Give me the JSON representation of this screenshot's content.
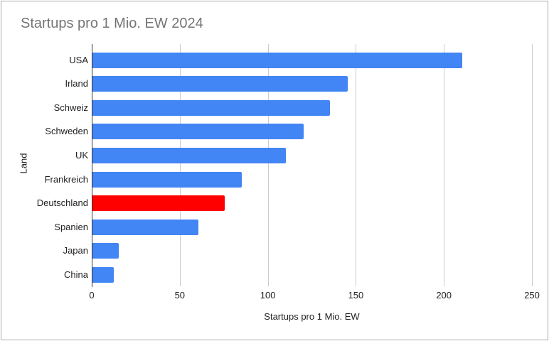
{
  "chart_data": {
    "type": "bar",
    "orientation": "horizontal",
    "title": "Startups pro 1 Mio. EW 2024",
    "xlabel": "Startups pro 1 Mio. EW",
    "ylabel": "Land",
    "categories": [
      "USA",
      "Irland",
      "Schweiz",
      "Schweden",
      "UK",
      "Frankreich",
      "Deutschland",
      "Spanien",
      "Japan",
      "China"
    ],
    "values": [
      210,
      145,
      135,
      120,
      110,
      85,
      75,
      60,
      15,
      12
    ],
    "xlim": [
      0,
      250
    ],
    "xticks": [
      0,
      50,
      100,
      150,
      200,
      250
    ],
    "grid": true,
    "legend": "none",
    "highlight_category": "Deutschland",
    "colors": {
      "bar_default": "#4285F4",
      "bar_highlight": "#FF0000",
      "gridline": "#CCCCCC",
      "axis_line": "#333333",
      "title_text": "#757575",
      "label_text": "#222222",
      "frame_border": "#ABABAB",
      "background": "#FFFFFF"
    }
  }
}
